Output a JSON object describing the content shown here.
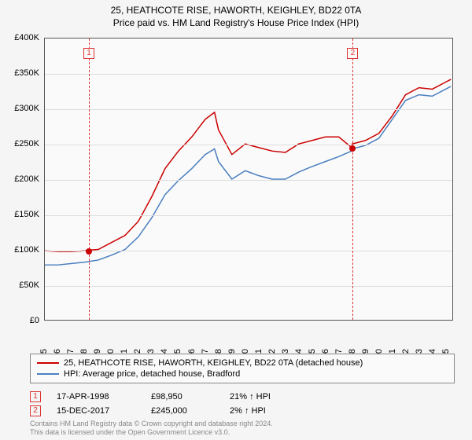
{
  "title": {
    "line1": "25, HEATHCOTE RISE, HAWORTH, KEIGHLEY, BD22 0TA",
    "line2": "Price paid vs. HM Land Registry's House Price Index (HPI)"
  },
  "chart": {
    "type": "line",
    "background_color": "#fafafa",
    "border_color": "#555555",
    "grid_color": "#dddddd",
    "ylim": [
      0,
      400000
    ],
    "ytick_step": 50000,
    "yticks": [
      {
        "v": 0,
        "label": "£0"
      },
      {
        "v": 50000,
        "label": "£50K"
      },
      {
        "v": 100000,
        "label": "£100K"
      },
      {
        "v": 150000,
        "label": "£150K"
      },
      {
        "v": 200000,
        "label": "£200K"
      },
      {
        "v": 250000,
        "label": "£250K"
      },
      {
        "v": 300000,
        "label": "£300K"
      },
      {
        "v": 350000,
        "label": "£350K"
      },
      {
        "v": 400000,
        "label": "£400K"
      }
    ],
    "xlim": [
      1995,
      2025.5
    ],
    "xticks": [
      1995,
      1996,
      1997,
      1998,
      1999,
      2000,
      2001,
      2002,
      2003,
      2004,
      2005,
      2006,
      2007,
      2008,
      2009,
      2010,
      2011,
      2012,
      2013,
      2014,
      2015,
      2016,
      2017,
      2018,
      2019,
      2020,
      2021,
      2022,
      2023,
      2024,
      2025
    ],
    "series": [
      {
        "id": "price_paid",
        "label": "25, HEATHCOTE RISE, HAWORTH, KEIGHLEY, BD22 0TA (detached house)",
        "color": "#cc0000",
        "line_width": 1.5,
        "data": [
          [
            1995,
            98000
          ],
          [
            1996,
            97000
          ],
          [
            1997,
            97000
          ],
          [
            1998,
            98000
          ],
          [
            1998.29,
            98950
          ],
          [
            1999,
            100000
          ],
          [
            2000,
            110000
          ],
          [
            2001,
            120000
          ],
          [
            2002,
            140000
          ],
          [
            2003,
            175000
          ],
          [
            2004,
            215000
          ],
          [
            2005,
            240000
          ],
          [
            2006,
            260000
          ],
          [
            2007,
            285000
          ],
          [
            2007.7,
            295000
          ],
          [
            2008,
            270000
          ],
          [
            2009,
            235000
          ],
          [
            2010,
            250000
          ],
          [
            2011,
            245000
          ],
          [
            2012,
            240000
          ],
          [
            2013,
            238000
          ],
          [
            2014,
            250000
          ],
          [
            2015,
            255000
          ],
          [
            2016,
            260000
          ],
          [
            2017,
            260000
          ],
          [
            2017.96,
            245000
          ],
          [
            2018,
            250000
          ],
          [
            2019,
            255000
          ],
          [
            2020,
            265000
          ],
          [
            2021,
            290000
          ],
          [
            2022,
            320000
          ],
          [
            2023,
            330000
          ],
          [
            2024,
            328000
          ],
          [
            2025,
            338000
          ],
          [
            2025.4,
            342000
          ]
        ]
      },
      {
        "id": "hpi",
        "label": "HPI: Average price, detached house, Bradford",
        "color": "#4a7fbf",
        "line_width": 1.5,
        "data": [
          [
            1995,
            78000
          ],
          [
            1996,
            78000
          ],
          [
            1997,
            80000
          ],
          [
            1998,
            82000
          ],
          [
            1999,
            85000
          ],
          [
            2000,
            92000
          ],
          [
            2001,
            100000
          ],
          [
            2002,
            118000
          ],
          [
            2003,
            145000
          ],
          [
            2004,
            178000
          ],
          [
            2005,
            198000
          ],
          [
            2006,
            215000
          ],
          [
            2007,
            235000
          ],
          [
            2007.7,
            243000
          ],
          [
            2008,
            225000
          ],
          [
            2009,
            200000
          ],
          [
            2010,
            212000
          ],
          [
            2011,
            205000
          ],
          [
            2012,
            200000
          ],
          [
            2013,
            200000
          ],
          [
            2014,
            210000
          ],
          [
            2015,
            218000
          ],
          [
            2016,
            225000
          ],
          [
            2017,
            232000
          ],
          [
            2017.96,
            240000
          ],
          [
            2018,
            243000
          ],
          [
            2019,
            248000
          ],
          [
            2020,
            258000
          ],
          [
            2021,
            285000
          ],
          [
            2022,
            312000
          ],
          [
            2023,
            320000
          ],
          [
            2024,
            318000
          ],
          [
            2025,
            328000
          ],
          [
            2025.4,
            332000
          ]
        ]
      }
    ],
    "markers": [
      {
        "n": "1",
        "x": 1998.29,
        "point_y": 98950,
        "point_color": "#cc0000"
      },
      {
        "n": "2",
        "x": 2017.96,
        "point_y": 245000,
        "point_color": "#cc0000"
      }
    ]
  },
  "legend": {
    "border_color": "#888888",
    "items": [
      {
        "color": "#cc0000",
        "label": "25, HEATHCOTE RISE, HAWORTH, KEIGHLEY, BD22 0TA (detached house)"
      },
      {
        "color": "#4a7fbf",
        "label": "HPI: Average price, detached house, Bradford"
      }
    ]
  },
  "sales": [
    {
      "n": "1",
      "date": "17-APR-1998",
      "price": "£98,950",
      "pct": "21% ↑ HPI"
    },
    {
      "n": "2",
      "date": "15-DEC-2017",
      "price": "£245,000",
      "pct": "2% ↑ HPI"
    }
  ],
  "footer": {
    "line1": "Contains HM Land Registry data © Crown copyright and database right 2024.",
    "line2": "This data is licensed under the Open Government Licence v3.0."
  },
  "label_fontsize": 11,
  "title_fontsize": 12
}
